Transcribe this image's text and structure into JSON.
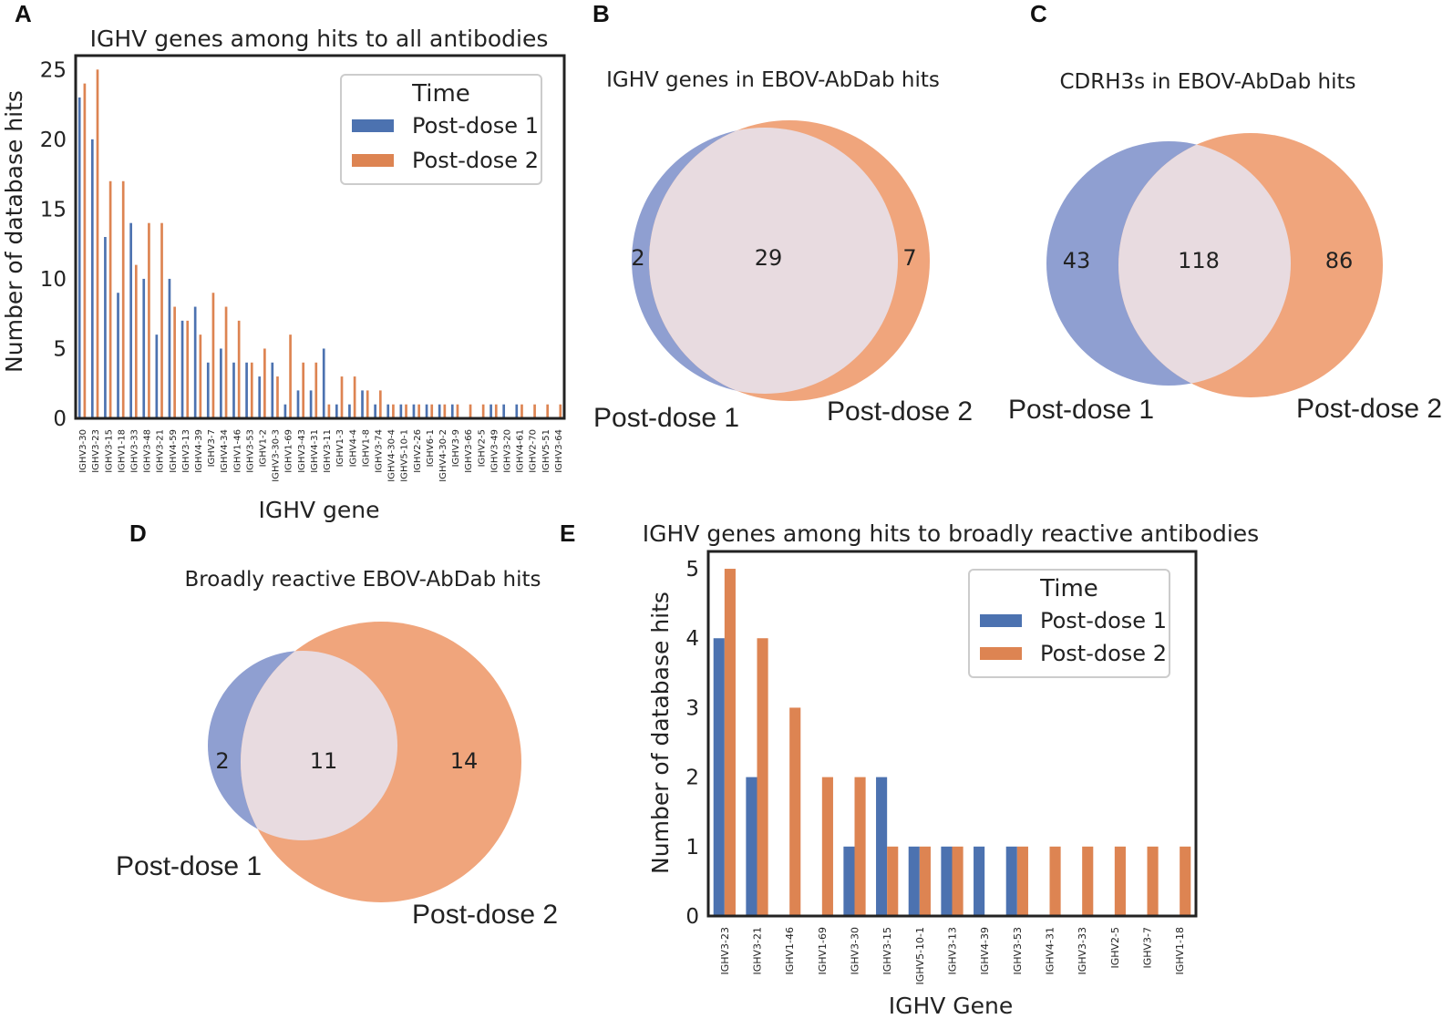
{
  "colors": {
    "post_dose_1": "#4c72b0",
    "post_dose_2": "#dd8452",
    "venn_set1": "#8f9fd1",
    "venn_set2": "#f0a57c",
    "venn_overlap": "#e8dbe0"
  },
  "panels": {
    "A": {
      "letter": "A"
    },
    "B": {
      "letter": "B"
    },
    "C": {
      "letter": "C"
    },
    "D": {
      "letter": "D"
    },
    "E": {
      "letter": "E"
    }
  },
  "chart_data": [
    {
      "panel": "A",
      "type": "bar",
      "title": "IGHV genes among hits to all antibodies",
      "xlabel": "IGHV gene",
      "ylabel": "Number of database hits",
      "ylim": [
        0,
        26
      ],
      "yticks": [
        0,
        5,
        10,
        15,
        20,
        25
      ],
      "legend": {
        "title": "Time",
        "position": "top-right"
      },
      "categories": [
        "IGHV3-30",
        "IGHV3-23",
        "IGHV3-15",
        "IGHV1-18",
        "IGHV3-33",
        "IGHV3-48",
        "IGHV3-21",
        "IGHV4-59",
        "IGHV3-13",
        "IGHV4-39",
        "IGHV3-7",
        "IGHV4-34",
        "IGHV1-46",
        "IGHV3-53",
        "IGHV1-2",
        "IGHV3-30-3",
        "IGHV1-69",
        "IGHV3-43",
        "IGHV4-31",
        "IGHV3-11",
        "IGHV1-3",
        "IGHV4-4",
        "IGHV1-8",
        "IGHV3-74",
        "IGHV4-30-4",
        "IGHV5-10-1",
        "IGHV2-26",
        "IGHV6-1",
        "IGHV4-30-2",
        "IGHV3-9",
        "IGHV3-66",
        "IGHV2-5",
        "IGHV3-49",
        "IGHV3-20",
        "IGHV4-61",
        "IGHV2-70",
        "IGHV5-51",
        "IGHV3-64"
      ],
      "series": [
        {
          "name": "Post-dose 1",
          "values": [
            23,
            20,
            13,
            9,
            14,
            10,
            6,
            10,
            7,
            8,
            4,
            5,
            4,
            4,
            3,
            4,
            1,
            2,
            2,
            5,
            1,
            1,
            2,
            1,
            1,
            1,
            1,
            1,
            1,
            1,
            0,
            0,
            1,
            1,
            1,
            0,
            0,
            0
          ]
        },
        {
          "name": "Post-dose 2",
          "values": [
            24,
            25,
            17,
            17,
            11,
            14,
            14,
            8,
            7,
            6,
            9,
            8,
            7,
            4,
            5,
            3,
            6,
            4,
            4,
            1,
            3,
            3,
            2,
            2,
            1,
            1,
            1,
            1,
            1,
            1,
            1,
            1,
            1,
            0,
            1,
            1,
            1,
            1
          ]
        }
      ]
    },
    {
      "panel": "B",
      "type": "venn",
      "title": "IGHV genes in EBOV-AbDab hits",
      "sets": [
        "Post-dose 1",
        "Post-dose 2"
      ],
      "only_set1": 2,
      "overlap": 29,
      "only_set2": 7
    },
    {
      "panel": "C",
      "type": "venn",
      "title": "CDRH3s in EBOV-AbDab hits",
      "sets": [
        "Post-dose 1",
        "Post-dose 2"
      ],
      "only_set1": 43,
      "overlap": 118,
      "only_set2": 86
    },
    {
      "panel": "D",
      "type": "venn",
      "title": "Broadly reactive EBOV-AbDab hits",
      "sets": [
        "Post-dose 1",
        "Post-dose 2"
      ],
      "only_set1": 2,
      "overlap": 11,
      "only_set2": 14
    },
    {
      "panel": "E",
      "type": "bar",
      "title": "IGHV genes among hits to broadly reactive antibodies",
      "xlabel": "IGHV Gene",
      "ylabel": "Number of database hits",
      "ylim": [
        0,
        5.25
      ],
      "yticks": [
        0,
        1,
        2,
        3,
        4,
        5
      ],
      "legend": {
        "title": "Time",
        "position": "top-right"
      },
      "categories": [
        "IGHV3-23",
        "IGHV3-21",
        "IGHV1-46",
        "IGHV1-69",
        "IGHV3-30",
        "IGHV3-15",
        "IGHV5-10-1",
        "IGHV3-13",
        "IGHV4-39",
        "IGHV3-53",
        "IGHV4-31",
        "IGHV3-33",
        "IGHV2-5",
        "IGHV3-7",
        "IGHV1-18"
      ],
      "series": [
        {
          "name": "Post-dose 1",
          "values": [
            4,
            2,
            0,
            0,
            1,
            2,
            1,
            1,
            1,
            1,
            0,
            0,
            0,
            0,
            0
          ]
        },
        {
          "name": "Post-dose 2",
          "values": [
            5,
            4,
            3,
            2,
            2,
            1,
            1,
            1,
            0,
            1,
            1,
            1,
            1,
            1,
            1
          ]
        }
      ]
    }
  ]
}
